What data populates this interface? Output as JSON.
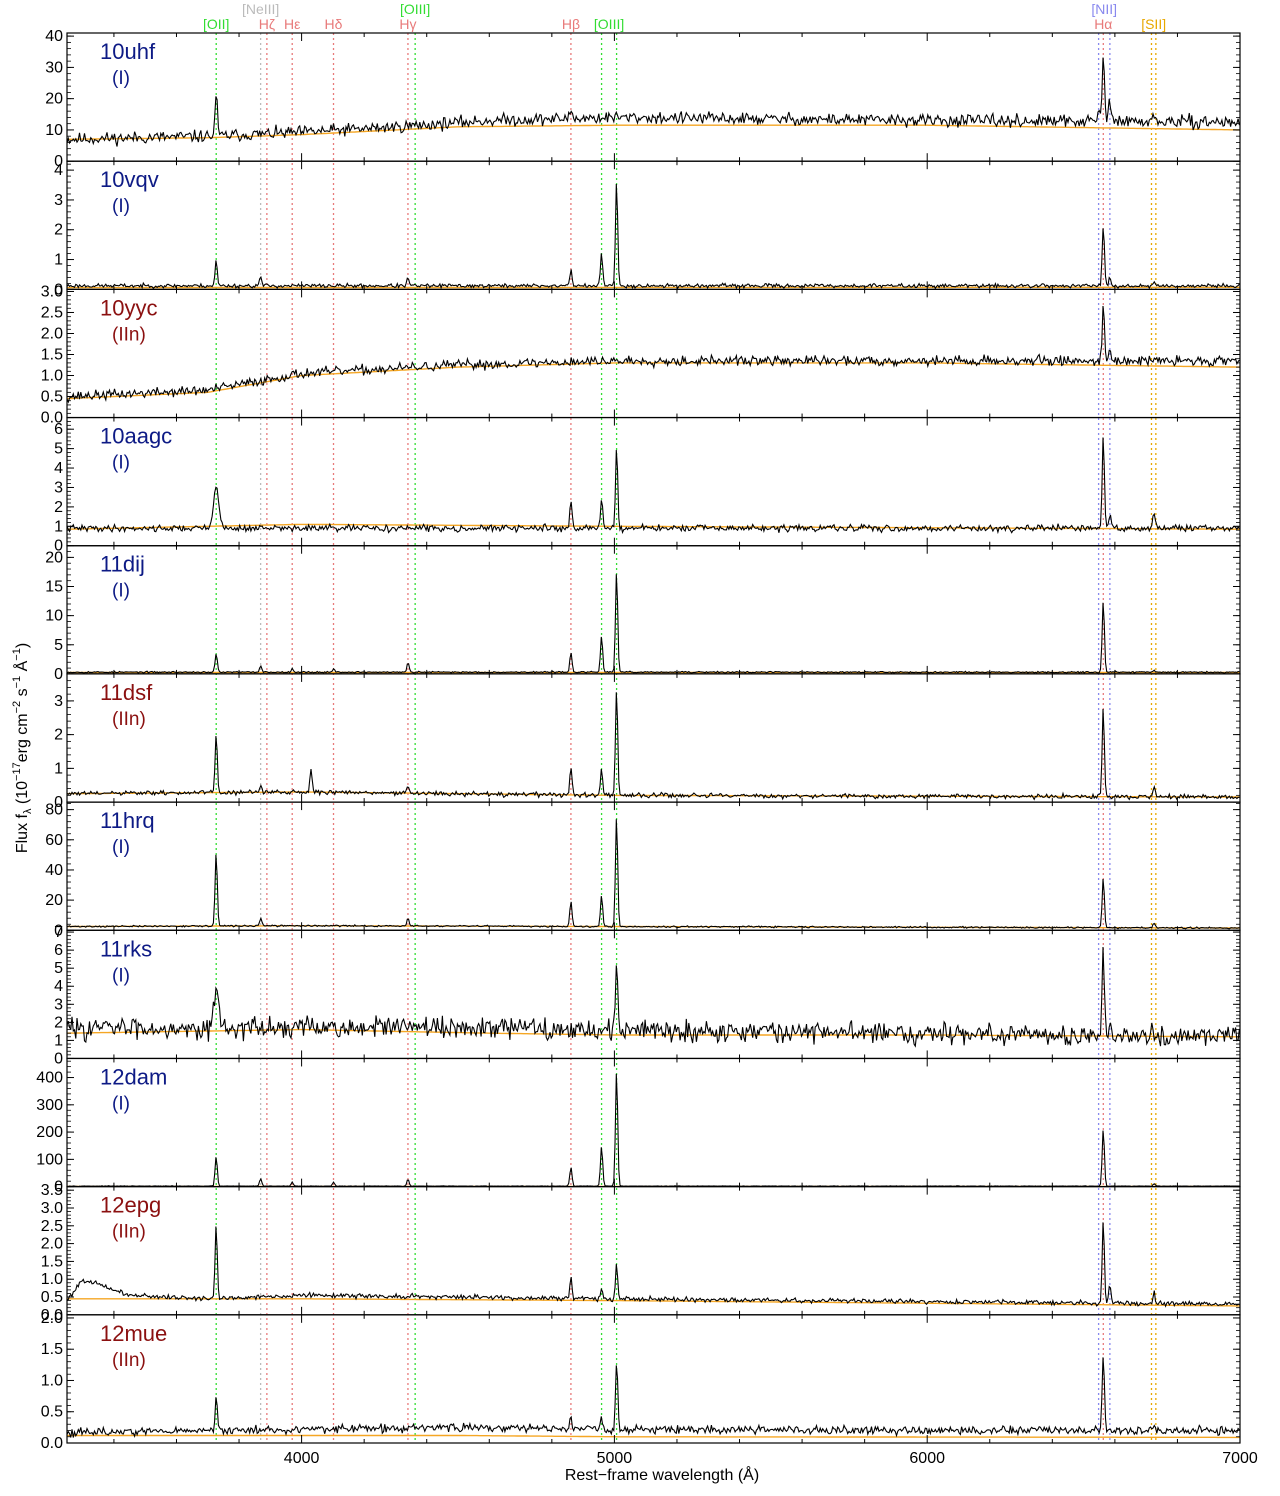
{
  "chart_data": {
    "type": "line",
    "xlabel": "Rest−frame wavelength (Å)",
    "ylabel": "Flux fλ (10⁻¹⁷erg cm⁻² s⁻¹ Å⁻¹)",
    "ylabel_parts": {
      "prefix": "Flux f",
      "sub": "λ",
      "mid1": " (10",
      "exp1": "−17",
      "mid2": "erg cm",
      "exp2": "−2",
      "mid3": " s",
      "exp3": "−1",
      "mid4": " Å",
      "exp4": "−1",
      "suffix": ")"
    },
    "xlim": [
      3250,
      7000
    ],
    "xticks": [
      4000,
      5000,
      6000,
      7000
    ],
    "colors": {
      "spectrum": "#000000",
      "model": "#f5a623",
      "type_I": "#0d1a85",
      "type_IIn": "#8b1010"
    },
    "emission_lines": [
      {
        "label": "[OII]",
        "wavelengths": [
          3727
        ],
        "color": "#33dd33",
        "row": 1
      },
      {
        "label": "[NeIII]",
        "wavelengths": [
          3869
        ],
        "color": "#bbbbbb",
        "row": 0
      },
      {
        "label": "Hζ",
        "wavelengths": [
          3889
        ],
        "color": "#e87a7a",
        "row": 1
      },
      {
        "label": "Hε",
        "wavelengths": [
          3970
        ],
        "color": "#e87a7a",
        "row": 1
      },
      {
        "label": "Hδ",
        "wavelengths": [
          4102
        ],
        "color": "#e87a7a",
        "row": 1
      },
      {
        "label": "[OIII]",
        "wavelengths": [
          4363
        ],
        "color": "#33dd33",
        "row": 0
      },
      {
        "label": "Hγ",
        "wavelengths": [
          4340
        ],
        "color": "#e87a7a",
        "row": 1
      },
      {
        "label": "Hβ",
        "wavelengths": [
          4861
        ],
        "color": "#e87a7a",
        "row": 1
      },
      {
        "label": "[OIII]",
        "wavelengths": [
          4959,
          5007
        ],
        "color": "#33dd33",
        "row": 1
      },
      {
        "label": "[NII]",
        "wavelengths": [
          6548,
          6584
        ],
        "color": "#8888ee",
        "row": 0
      },
      {
        "label": "Hα",
        "wavelengths": [
          6563
        ],
        "color": "#e87a7a",
        "row": 1
      },
      {
        "label": "[SII]",
        "wavelengths": [
          6717,
          6731
        ],
        "color": "#e8a800",
        "row": 1
      }
    ],
    "series": [
      {
        "name": "10uhf",
        "sn_type": "(I)",
        "ylim": [
          0,
          41
        ],
        "yticks": [
          0,
          10,
          20,
          30,
          40
        ],
        "tick_labels": [
          "0",
          "10",
          "20",
          "30",
          "40"
        ],
        "continuum": [
          [
            3250,
            7
          ],
          [
            3700,
            8
          ],
          [
            3950,
            9
          ],
          [
            4300,
            11
          ],
          [
            4600,
            13
          ],
          [
            5000,
            14
          ],
          [
            6000,
            13
          ],
          [
            7000,
            12.5
          ]
        ],
        "model": [
          [
            3250,
            7
          ],
          [
            3700,
            7.5
          ],
          [
            4000,
            8.5
          ],
          [
            4500,
            11
          ],
          [
            5000,
            11.5
          ],
          [
            6000,
            11.5
          ],
          [
            7000,
            10
          ]
        ],
        "noise": 1.5,
        "seed": 11,
        "lines": [
          {
            "wl": 3727,
            "amp": 14
          },
          {
            "wl": 4861,
            "amp": 3
          },
          {
            "wl": 6563,
            "amp": 22
          },
          {
            "wl": 6584,
            "amp": 8
          },
          {
            "wl": 6548,
            "amp": 3
          },
          {
            "wl": 6725,
            "amp": 2
          }
        ]
      },
      {
        "name": "10vqv",
        "sn_type": "(I)",
        "ylim": [
          0,
          4.3
        ],
        "yticks": [
          0,
          1,
          2,
          3,
          4
        ],
        "tick_labels": [
          "0",
          "1",
          "2",
          "3",
          "4"
        ],
        "continuum": [
          [
            3250,
            0.12
          ],
          [
            7000,
            0.12
          ]
        ],
        "model": [
          [
            3250,
            0.06
          ],
          [
            7000,
            0.07
          ]
        ],
        "noise": 0.05,
        "seed": 23,
        "lines": [
          {
            "wl": 3727,
            "amp": 0.85
          },
          {
            "wl": 3869,
            "amp": 0.3
          },
          {
            "wl": 4340,
            "amp": 0.25
          },
          {
            "wl": 4861,
            "amp": 0.55
          },
          {
            "wl": 4959,
            "amp": 1.1
          },
          {
            "wl": 5007,
            "amp": 3.55
          },
          {
            "wl": 6563,
            "amp": 2.05
          },
          {
            "wl": 6584,
            "amp": 0.3
          },
          {
            "wl": 6725,
            "amp": 0.12
          }
        ]
      },
      {
        "name": "10yyc",
        "sn_type": "(IIn)",
        "ylim": [
          0,
          3.05
        ],
        "yticks": [
          0,
          0.5,
          1,
          1.5,
          2,
          2.5,
          3
        ],
        "tick_labels": [
          "0.0",
          "0.5",
          "1.0",
          "1.5",
          "2.0",
          "2.5",
          "3.0"
        ],
        "continuum": [
          [
            3250,
            0.5
          ],
          [
            3700,
            0.65
          ],
          [
            4000,
            1.05
          ],
          [
            4500,
            1.25
          ],
          [
            5000,
            1.35
          ],
          [
            6000,
            1.35
          ],
          [
            6700,
            1.35
          ],
          [
            7000,
            1.35
          ]
        ],
        "model": [
          [
            3250,
            0.45
          ],
          [
            3700,
            0.6
          ],
          [
            4000,
            1.0
          ],
          [
            4500,
            1.2
          ],
          [
            5000,
            1.3
          ],
          [
            6000,
            1.3
          ],
          [
            7000,
            1.2
          ]
        ],
        "noise": 0.09,
        "seed": 37,
        "lines": [
          {
            "wl": 6563,
            "amp": 1.3
          },
          {
            "wl": 6584,
            "amp": 0.4
          }
        ]
      },
      {
        "name": "10aagc",
        "sn_type": "(I)",
        "ylim": [
          0,
          6.6
        ],
        "yticks": [
          0,
          1,
          2,
          3,
          4,
          5,
          6
        ],
        "tick_labels": [
          "0",
          "1",
          "2",
          "3",
          "4",
          "5",
          "6"
        ],
        "continuum": [
          [
            3250,
            0.9
          ],
          [
            7000,
            0.9
          ]
        ],
        "model": [
          [
            3250,
            0.85
          ],
          [
            4000,
            1.1
          ],
          [
            5000,
            1.0
          ],
          [
            7000,
            0.85
          ]
        ],
        "noise": 0.13,
        "seed": 41,
        "lines": [
          {
            "wl": 3727,
            "amp": 2.3,
            "w": 8
          },
          {
            "wl": 4861,
            "amp": 1.45
          },
          {
            "wl": 4959,
            "amp": 1.6
          },
          {
            "wl": 5007,
            "amp": 4.2
          },
          {
            "wl": 6563,
            "amp": 4.8
          },
          {
            "wl": 6584,
            "amp": 0.6
          },
          {
            "wl": 6725,
            "amp": 0.8
          }
        ]
      },
      {
        "name": "11dij",
        "sn_type": "(I)",
        "ylim": [
          0,
          22
        ],
        "yticks": [
          0,
          5,
          10,
          15,
          20
        ],
        "tick_labels": [
          "0",
          "5",
          "10",
          "15",
          "20"
        ],
        "continuum": [
          [
            3250,
            0.3
          ],
          [
            7000,
            0.3
          ]
        ],
        "model": [
          [
            3250,
            0.25
          ],
          [
            7000,
            0.25
          ]
        ],
        "noise": 0.1,
        "seed": 53,
        "lines": [
          {
            "wl": 3727,
            "amp": 3.2
          },
          {
            "wl": 3869,
            "amp": 1.1
          },
          {
            "wl": 3970,
            "amp": 0.7
          },
          {
            "wl": 4102,
            "amp": 0.6
          },
          {
            "wl": 4340,
            "amp": 1.6
          },
          {
            "wl": 4861,
            "amp": 3.5
          },
          {
            "wl": 4959,
            "amp": 6.3
          },
          {
            "wl": 5007,
            "amp": 17.6
          },
          {
            "wl": 6563,
            "amp": 12.4
          },
          {
            "wl": 6725,
            "amp": 0.3
          }
        ]
      },
      {
        "name": "11dsf",
        "sn_type": "(IIn)",
        "ylim": [
          0,
          3.8
        ],
        "yticks": [
          0,
          1,
          2,
          3
        ],
        "tick_labels": [
          "0",
          "1",
          "2",
          "3"
        ],
        "continuum": [
          [
            3250,
            0.25
          ],
          [
            4000,
            0.3
          ],
          [
            5000,
            0.2
          ],
          [
            7000,
            0.15
          ]
        ],
        "model": [
          [
            3250,
            0.25
          ],
          [
            4000,
            0.3
          ],
          [
            5000,
            0.2
          ],
          [
            7000,
            0.15
          ]
        ],
        "noise": 0.05,
        "seed": 61,
        "lines": [
          {
            "wl": 3727,
            "amp": 1.75
          },
          {
            "wl": 3869,
            "amp": 0.2
          },
          {
            "wl": 4030,
            "amp": 0.7
          },
          {
            "wl": 4340,
            "amp": 0.2
          },
          {
            "wl": 4861,
            "amp": 0.8
          },
          {
            "wl": 4959,
            "amp": 0.8
          },
          {
            "wl": 5007,
            "amp": 3.2
          },
          {
            "wl": 6563,
            "amp": 2.65
          },
          {
            "wl": 6725,
            "amp": 0.25
          }
        ]
      },
      {
        "name": "11hrq",
        "sn_type": "(I)",
        "ylim": [
          0,
          85
        ],
        "yticks": [
          0,
          20,
          40,
          60,
          80
        ],
        "tick_labels": [
          "0",
          "20",
          "40",
          "60",
          "80"
        ],
        "continuum": [
          [
            3250,
            2.5
          ],
          [
            4000,
            3
          ],
          [
            5000,
            2.5
          ],
          [
            7000,
            1.5
          ]
        ],
        "model": [
          [
            3250,
            2.5
          ],
          [
            4000,
            3
          ],
          [
            5000,
            2.5
          ],
          [
            7000,
            1.5
          ]
        ],
        "noise": 0.4,
        "seed": 71,
        "lines": [
          {
            "wl": 3727,
            "amp": 49
          },
          {
            "wl": 3869,
            "amp": 5
          },
          {
            "wl": 4340,
            "amp": 5
          },
          {
            "wl": 4861,
            "amp": 17
          },
          {
            "wl": 4959,
            "amp": 21
          },
          {
            "wl": 5007,
            "amp": 74
          },
          {
            "wl": 6563,
            "amp": 33
          },
          {
            "wl": 6725,
            "amp": 3
          }
        ]
      },
      {
        "name": "11rks",
        "sn_type": "(I)",
        "ylim": [
          0,
          7.1
        ],
        "yticks": [
          0,
          1,
          2,
          3,
          4,
          5,
          6,
          7
        ],
        "tick_labels": [
          "0",
          "1",
          "2",
          "3",
          "4",
          "5",
          "6",
          "7"
        ],
        "continuum": [
          [
            3250,
            1.7
          ],
          [
            4500,
            1.7
          ],
          [
            5000,
            1.6
          ],
          [
            6000,
            1.4
          ],
          [
            7000,
            1.2
          ]
        ],
        "model": [
          [
            3250,
            1.4
          ],
          [
            4000,
            1.6
          ],
          [
            4600,
            1.4
          ],
          [
            5000,
            1.3
          ],
          [
            6000,
            1.3
          ],
          [
            7000,
            1.2
          ]
        ],
        "noise": 0.45,
        "seed": 83,
        "lines": [
          {
            "wl": 3727,
            "amp": 2.0,
            "w": 8
          },
          {
            "wl": 5007,
            "amp": 3.5
          },
          {
            "wl": 6563,
            "amp": 4.6
          },
          {
            "wl": 6584,
            "amp": 0.8
          }
        ]
      },
      {
        "name": "12dam",
        "sn_type": "(I)",
        "ylim": [
          0,
          470
        ],
        "yticks": [
          0,
          100,
          200,
          300,
          400
        ],
        "tick_labels": [
          "0",
          "100",
          "200",
          "300",
          "400"
        ],
        "continuum": [
          [
            3250,
            2
          ],
          [
            7000,
            2
          ]
        ],
        "model": [
          [
            3250,
            1
          ],
          [
            7000,
            1
          ]
        ],
        "noise": 0.8,
        "seed": 97,
        "lines": [
          {
            "wl": 3727,
            "amp": 110
          },
          {
            "wl": 3869,
            "amp": 28
          },
          {
            "wl": 3970,
            "amp": 14
          },
          {
            "wl": 4102,
            "amp": 14
          },
          {
            "wl": 4340,
            "amp": 26
          },
          {
            "wl": 4861,
            "amp": 70
          },
          {
            "wl": 4959,
            "amp": 148
          },
          {
            "wl": 5007,
            "amp": 428
          },
          {
            "wl": 6563,
            "amp": 212
          },
          {
            "wl": 6725,
            "amp": 8
          }
        ]
      },
      {
        "name": "12epg",
        "sn_type": "(IIn)",
        "ylim": [
          0,
          3.6
        ],
        "yticks": [
          0,
          0.5,
          1,
          1.5,
          2,
          2.5,
          3,
          3.5
        ],
        "tick_labels": [
          "0.0",
          "0.5",
          "1.0",
          "1.5",
          "2.0",
          "2.5",
          "3.0",
          "3.5"
        ],
        "continuum": [
          [
            3250,
            0.4
          ],
          [
            3300,
            1.0
          ],
          [
            3450,
            0.55
          ],
          [
            3700,
            0.45
          ],
          [
            4000,
            0.55
          ],
          [
            5000,
            0.45
          ],
          [
            7000,
            0.3
          ]
        ],
        "model": [
          [
            3250,
            0.45
          ],
          [
            4000,
            0.45
          ],
          [
            5000,
            0.4
          ],
          [
            7000,
            0.25
          ]
        ],
        "noise": 0.05,
        "seed": 101,
        "lines": [
          {
            "wl": 3727,
            "amp": 2.05
          },
          {
            "wl": 4861,
            "amp": 0.55
          },
          {
            "wl": 4959,
            "amp": 0.3
          },
          {
            "wl": 5007,
            "amp": 1.0
          },
          {
            "wl": 6563,
            "amp": 2.3
          },
          {
            "wl": 6584,
            "amp": 0.45
          },
          {
            "wl": 6725,
            "amp": 0.3
          }
        ]
      },
      {
        "name": "12mue",
        "sn_type": "(IIn)",
        "ylim": [
          0,
          2.05
        ],
        "yticks": [
          0,
          0.5,
          1,
          1.5,
          2
        ],
        "tick_labels": [
          "0.0",
          "0.5",
          "1.0",
          "1.5",
          "2.0"
        ],
        "continuum": [
          [
            3250,
            0.17
          ],
          [
            4500,
            0.25
          ],
          [
            5000,
            0.22
          ],
          [
            6000,
            0.2
          ],
          [
            7000,
            0.2
          ]
        ],
        "model": [
          [
            3250,
            0.12
          ],
          [
            4500,
            0.12
          ],
          [
            5000,
            0.1
          ],
          [
            7000,
            0.09
          ]
        ],
        "noise": 0.05,
        "seed": 113,
        "lines": [
          {
            "wl": 3727,
            "amp": 0.5
          },
          {
            "wl": 4861,
            "amp": 0.15
          },
          {
            "wl": 4959,
            "amp": 0.2
          },
          {
            "wl": 5007,
            "amp": 1.1
          },
          {
            "wl": 6563,
            "amp": 1.25
          },
          {
            "wl": 6725,
            "amp": 0.1
          }
        ]
      }
    ]
  }
}
